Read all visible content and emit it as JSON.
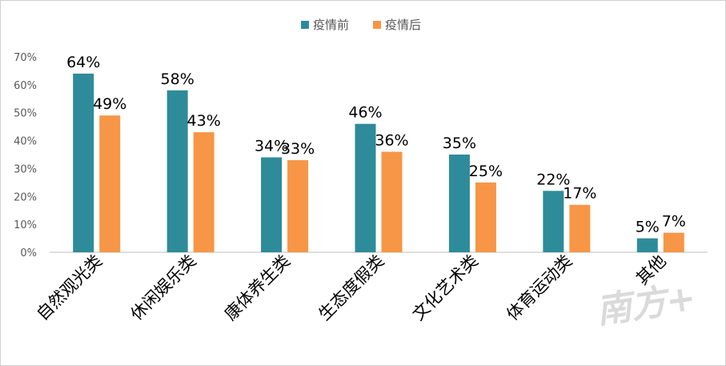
{
  "chart_data": {
    "type": "bar",
    "title": "",
    "xlabel": "",
    "ylabel": "",
    "categories": [
      "自然观光类",
      "休闲娱乐类",
      "康体养生类",
      "生态度假类",
      "文化艺术类",
      "体育运动类",
      "其他"
    ],
    "series": [
      {
        "name": "疫情前",
        "values": [
          64,
          58,
          34,
          46,
          35,
          22,
          5
        ],
        "color": "#2e8b9a"
      },
      {
        "name": "疫情后",
        "values": [
          49,
          43,
          33,
          36,
          25,
          17,
          7
        ],
        "color": "#f79646"
      }
    ],
    "ylim": [
      0,
      70
    ],
    "yticks": [
      0,
      10,
      20,
      30,
      40,
      50,
      60,
      70
    ],
    "value_suffix": "%",
    "legend_position": "top-center",
    "grid": false
  },
  "watermark": {
    "text": "南方+"
  }
}
